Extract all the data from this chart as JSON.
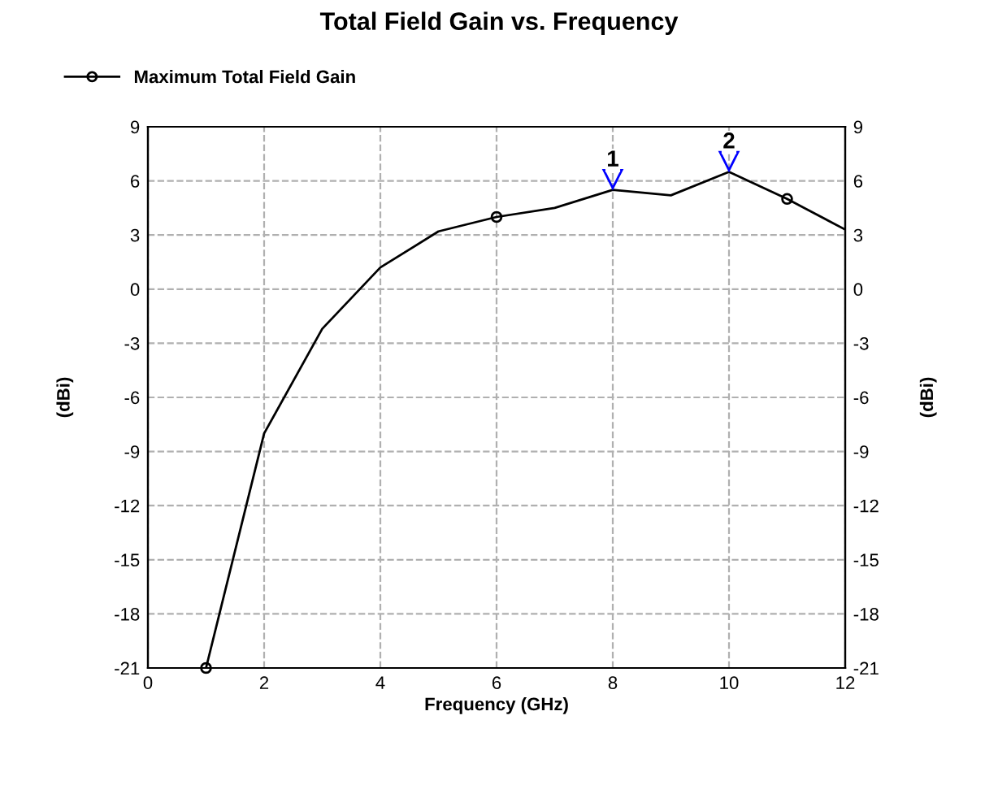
{
  "chart_data": {
    "type": "line",
    "title": "Total Field Gain vs. Frequency",
    "xlabel": "Frequency (GHz)",
    "ylabel": "(dBi)",
    "y2label": "(dBi)",
    "x": [
      1,
      2,
      3,
      4,
      5,
      6,
      7,
      8,
      9,
      10,
      11,
      12
    ],
    "series": [
      {
        "name": "Maximum Total Field Gain",
        "color": "#000000",
        "values": [
          -21,
          -8.0,
          -2.2,
          1.2,
          3.2,
          4.0,
          4.5,
          5.5,
          5.2,
          6.5,
          5.0,
          3.3
        ],
        "marker": "none"
      },
      {
        "type": "scatter",
        "color": "#000000",
        "x": [
          1,
          6,
          11
        ],
        "values": [
          -21,
          4.0,
          5.0
        ],
        "marker": "circle"
      }
    ],
    "annotations": [
      {
        "text": "1",
        "x": 8,
        "y": 5.5
      },
      {
        "text": "2",
        "x": 10,
        "y": 6.5
      }
    ],
    "xlim": [
      0,
      12
    ],
    "xticks": [
      0,
      2,
      4,
      6,
      8,
      10,
      12
    ],
    "ylim": [
      -21,
      9
    ],
    "yticks": [
      -21,
      -18,
      -15,
      -12,
      -9,
      -6,
      -3,
      0,
      3,
      6,
      9
    ],
    "y2lim": [
      -21,
      9
    ],
    "y2ticks": [
      -21,
      -18,
      -15,
      -12,
      -9,
      -6,
      -3,
      0,
      3,
      6,
      9
    ],
    "grid": true,
    "legend": "top left",
    "line_style": "solid"
  }
}
